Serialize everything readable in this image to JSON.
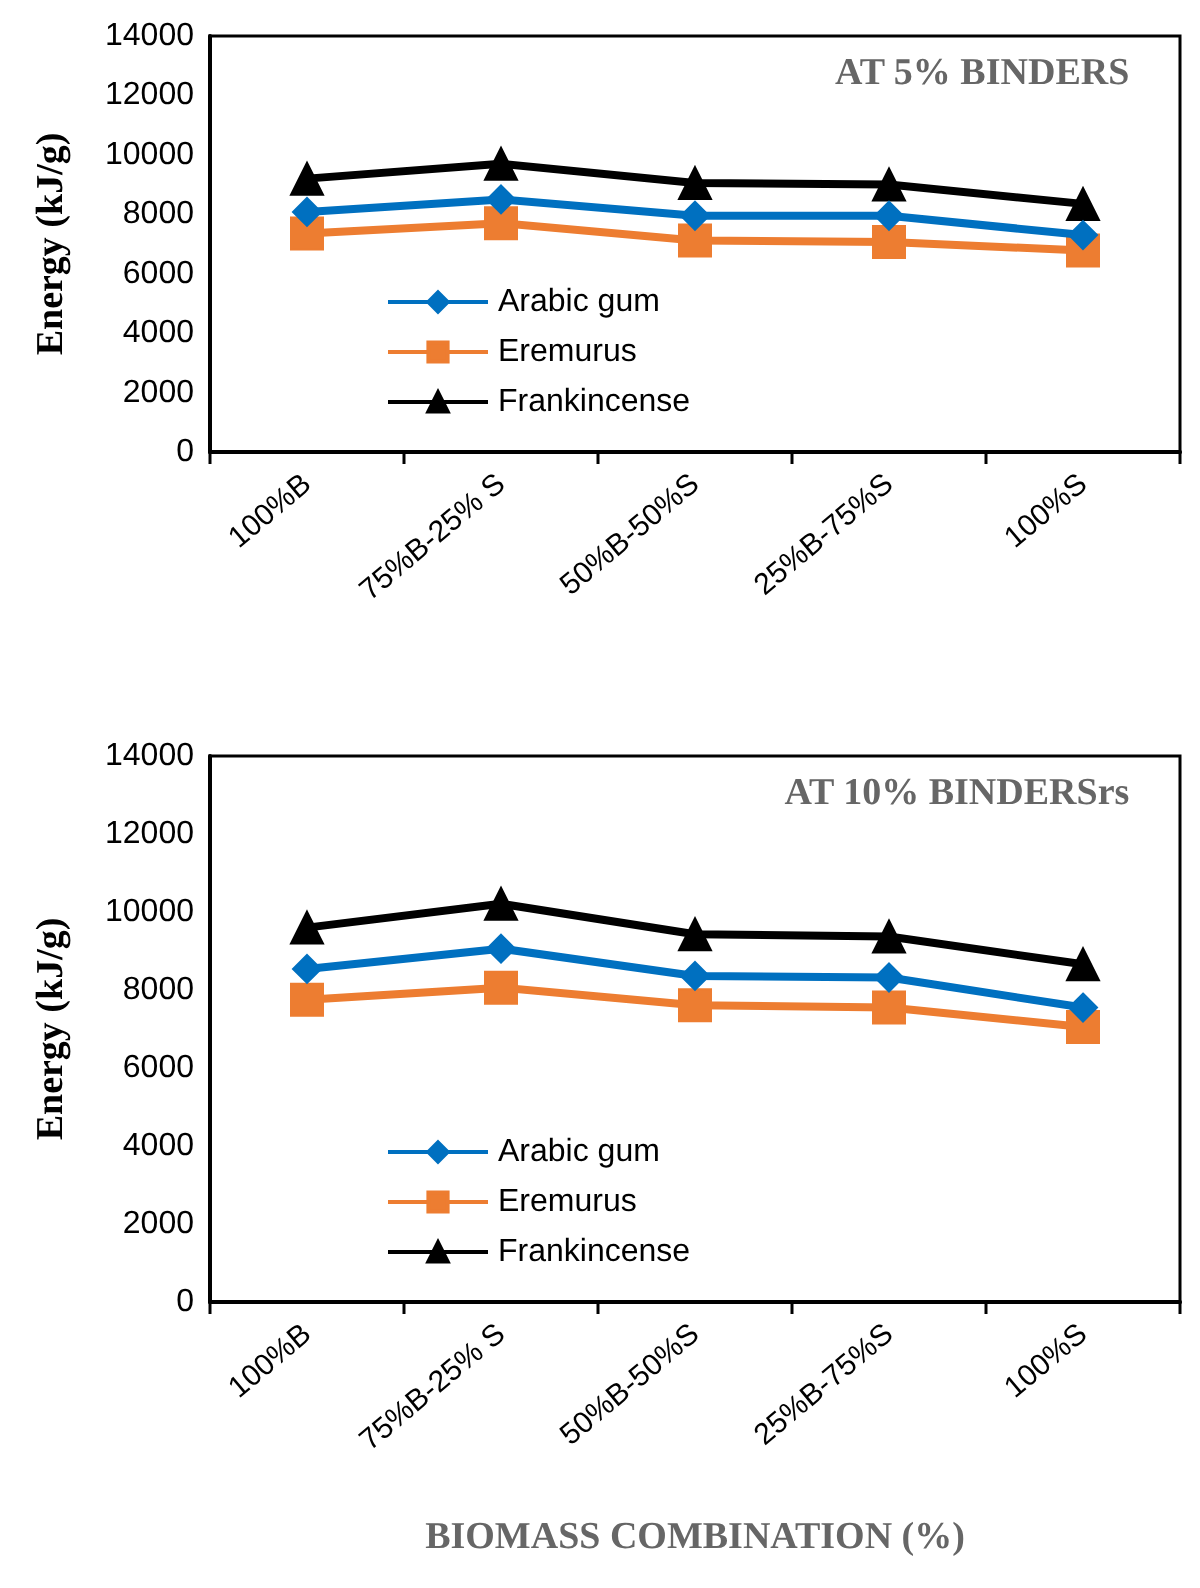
{
  "chart_data": [
    {
      "type": "line",
      "title": "AT 5% BINDERS",
      "ylabel": "Energy (kJ/g)",
      "legend": "bottom left",
      "categories": [
        "100%B",
        "75%B-25% S",
        "50%B-50%S",
        "25%B-75%S",
        "100%S"
      ],
      "ylim": [
        0,
        14000
      ],
      "yticks": [
        0,
        2000,
        4000,
        6000,
        8000,
        10000,
        12000,
        14000
      ],
      "series": [
        {
          "name": "Arabic gum",
          "color": "#0070c0",
          "marker": "diamond",
          "values": [
            8080,
            8500,
            7950,
            7950,
            7300
          ]
        },
        {
          "name": "Eremurus",
          "color": "#ed7d31",
          "marker": "square",
          "values": [
            7350,
            7700,
            7120,
            7070,
            6780
          ]
        },
        {
          "name": "Frankincense",
          "color": "#000000",
          "marker": "triangle",
          "values": [
            9200,
            9700,
            9050,
            9000,
            8350
          ]
        }
      ]
    },
    {
      "type": "line",
      "title": "AT 10% BINDERSrs",
      "ylabel": "Energy (kJ/g)",
      "xlabel": "BIOMASS COMBINATION (%)",
      "legend": "bottom left",
      "categories": [
        "100%B",
        "75%B-25% S",
        "50%B-50%S",
        "25%B-75%S",
        "100%S"
      ],
      "ylim": [
        0,
        14000
      ],
      "yticks": [
        0,
        2000,
        4000,
        6000,
        8000,
        10000,
        12000,
        14000
      ],
      "series": [
        {
          "name": "Arabic gum",
          "color": "#0070c0",
          "marker": "diamond",
          "values": [
            8540,
            9060,
            8360,
            8320,
            7550
          ]
        },
        {
          "name": "Eremurus",
          "color": "#ed7d31",
          "marker": "square",
          "values": [
            7750,
            8060,
            7610,
            7550,
            7050
          ]
        },
        {
          "name": "Frankincense",
          "color": "#000000",
          "marker": "triangle",
          "values": [
            9600,
            10210,
            9430,
            9370,
            8660
          ]
        }
      ]
    }
  ]
}
